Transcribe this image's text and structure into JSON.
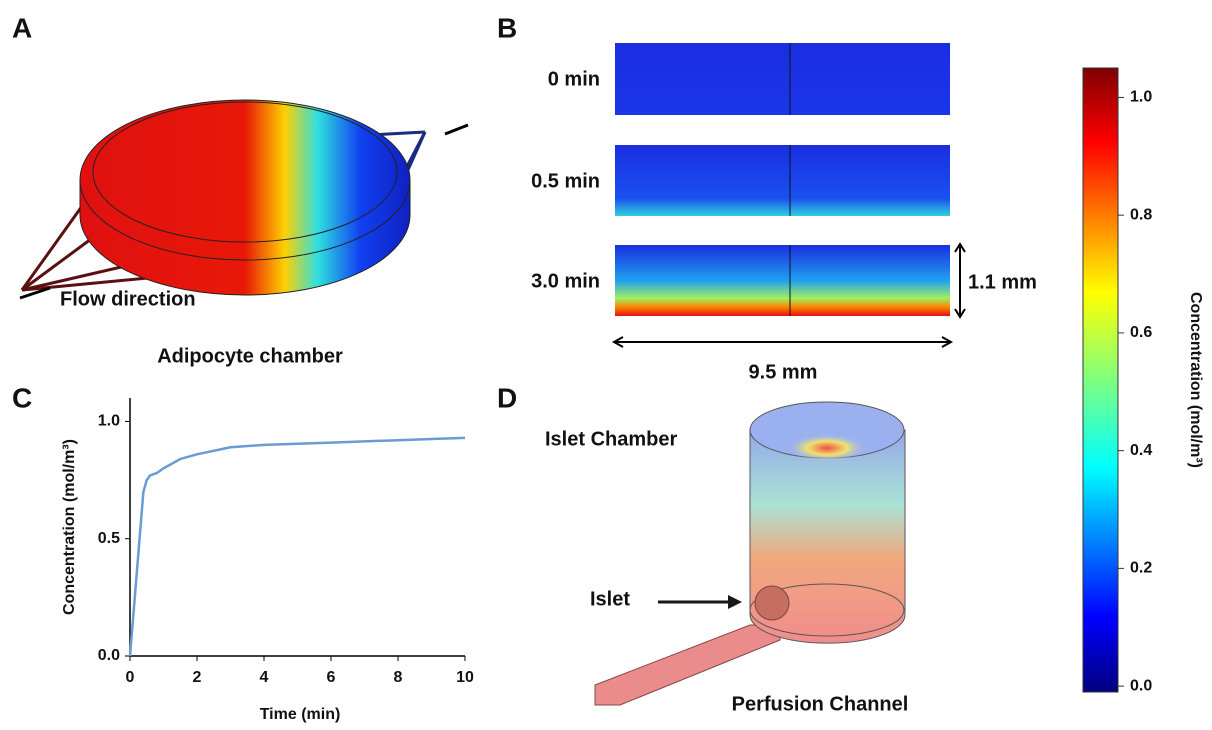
{
  "panels": {
    "a": {
      "label": "A",
      "annotation": "Flow direction",
      "caption": "Adipocyte chamber"
    },
    "b": {
      "label": "B",
      "rows": [
        "0 min",
        "0.5 min",
        "3.0 min"
      ],
      "height": "1.1 mm",
      "width": "9.5 mm"
    },
    "c": {
      "label": "C"
    },
    "d": {
      "label": "D",
      "labels": [
        "Islet Chamber",
        "Islet",
        "Perfusion Channel"
      ]
    }
  },
  "colorbar": {
    "label": "Concentration (mol/m³)",
    "lim": [
      -0.01,
      1.05
    ],
    "ticks": [
      {
        "value": 0,
        "label": "0.0"
      },
      {
        "value": 0.2,
        "label": "0.2"
      },
      {
        "value": 0.4,
        "label": "0.4"
      },
      {
        "value": 0.6,
        "label": "0.6"
      },
      {
        "value": 0.8,
        "label": "0.8"
      },
      {
        "value": 1,
        "label": "1.0"
      }
    ]
  },
  "chart_data": {
    "type": "line",
    "xlabel": "Time (min)",
    "ylabel": "Concentration (mol/m³)",
    "x": [
      0,
      0.2,
      0.4,
      0.5,
      0.6,
      0.8,
      1,
      1.5,
      2,
      3,
      4,
      5,
      6,
      7,
      8,
      9,
      10
    ],
    "series": [
      {
        "color": "#6a9bd1",
        "values": [
          0,
          0.35,
          0.7,
          0.75,
          0.77,
          0.78,
          0.8,
          0.84,
          0.86,
          0.89,
          0.9,
          0.905,
          0.91,
          0.915,
          0.92,
          0.925,
          0.93
        ]
      }
    ],
    "xlim": [
      0,
      10
    ],
    "xticks": [
      0,
      2,
      4,
      6,
      8,
      10
    ],
    "ylim": [
      0,
      1.1
    ],
    "yticks": [
      {
        "value": 0,
        "label": "0.0"
      },
      {
        "value": 0.5,
        "label": "0.5"
      },
      {
        "value": 1,
        "label": "1.0"
      }
    ]
  }
}
